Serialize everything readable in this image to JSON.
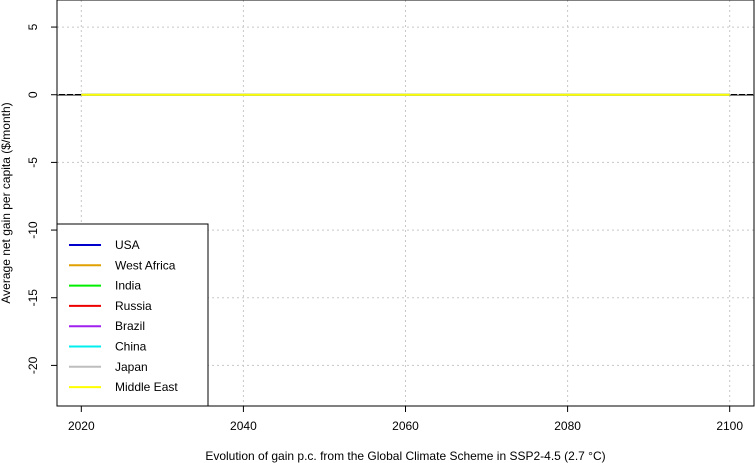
{
  "chart_data": {
    "type": "line",
    "title": "",
    "xlabel": "Evolution of  gain  p.c. from the Global Climate Scheme in SSP2-4.5 (2.7 °C)",
    "ylabel": "Average net gain per capita ($/month)",
    "xlim": [
      2017,
      2103
    ],
    "ylim": [
      -23,
      7
    ],
    "x_ticks": [
      2020,
      2040,
      2060,
      2080,
      2100
    ],
    "y_ticks": [
      5,
      0,
      -5,
      -10,
      -15,
      -20
    ],
    "grid": true,
    "legend_position": "bottom-left",
    "reference_line_y": 0,
    "x": [
      2020,
      2100
    ],
    "series": [
      {
        "name": "USA",
        "color": "#0000CD",
        "values": [
          0,
          0
        ]
      },
      {
        "name": "West Africa",
        "color": "#E0A000",
        "values": [
          0,
          0
        ]
      },
      {
        "name": "India",
        "color": "#00EE00",
        "values": [
          0,
          0
        ]
      },
      {
        "name": "Russia",
        "color": "#EE0000",
        "values": [
          0,
          0
        ]
      },
      {
        "name": "Brazil",
        "color": "#A020F0",
        "values": [
          0,
          0
        ]
      },
      {
        "name": "China",
        "color": "#00EEEE",
        "values": [
          0,
          0
        ]
      },
      {
        "name": "Japan",
        "color": "#BEBEBE",
        "values": [
          0,
          0
        ]
      },
      {
        "name": "Middle East",
        "color": "#FFFF00",
        "values": [
          0,
          0
        ]
      }
    ]
  }
}
